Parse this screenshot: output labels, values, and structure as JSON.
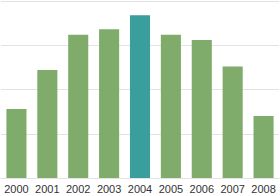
{
  "chart_data": {
    "type": "bar",
    "categories": [
      "2000",
      "2001",
      "2002",
      "2003",
      "2004",
      "2005",
      "2006",
      "2007",
      "2008"
    ],
    "values": [
      39,
      61,
      81,
      84,
      92,
      81,
      78,
      63,
      35
    ],
    "colors": [
      "#7fac6a",
      "#7fac6a",
      "#7fac6a",
      "#7fac6a",
      "#3a9e9c",
      "#7fac6a",
      "#7fac6a",
      "#7fac6a",
      "#7fac6a"
    ],
    "ylim": [
      0,
      100
    ],
    "yticks": [
      0,
      25,
      50,
      75,
      100
    ],
    "grid": true,
    "tick_labels": "x"
  }
}
